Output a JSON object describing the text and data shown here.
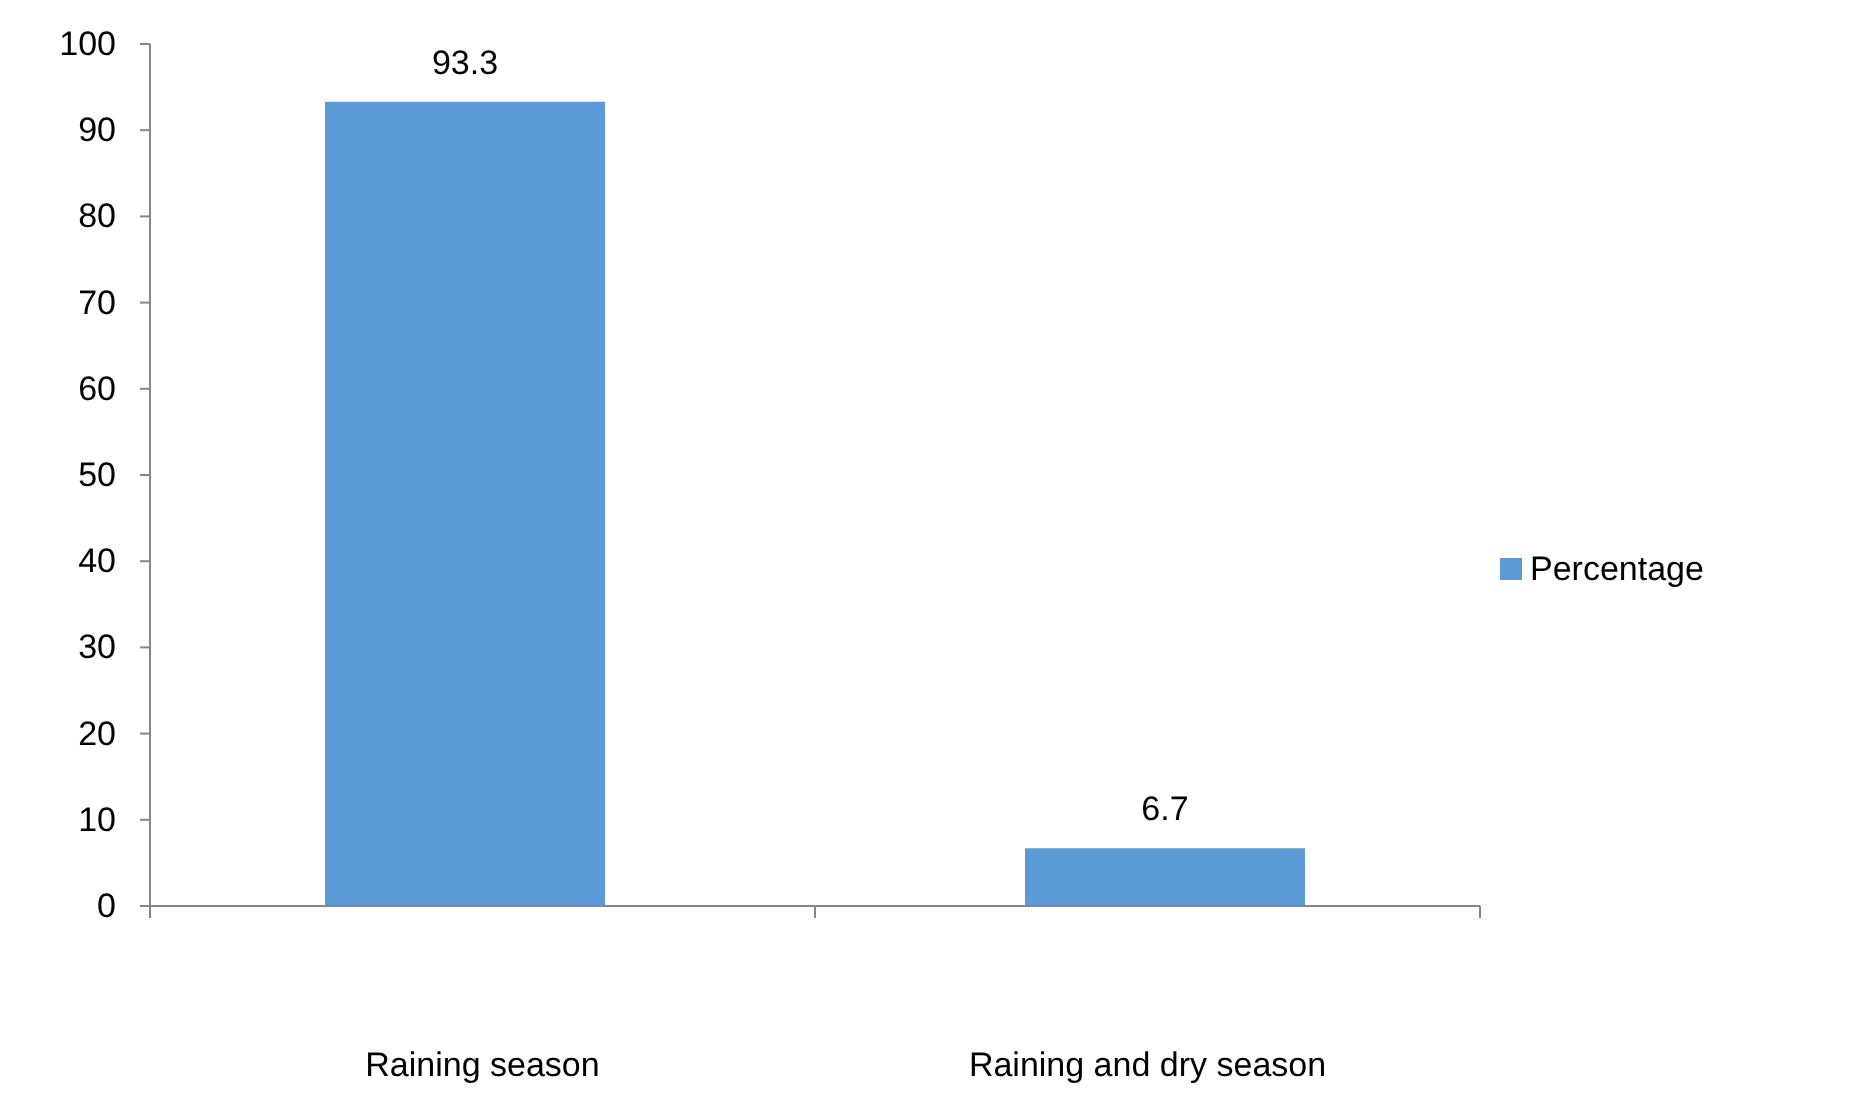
{
  "chart_data": {
    "type": "bar",
    "categories": [
      "Raining season",
      "Raining and dry season"
    ],
    "series": [
      {
        "name": "Percentage",
        "color": "#5b9bd5",
        "values": [
          93.3,
          6.7
        ]
      }
    ],
    "ylim": [
      0,
      100
    ],
    "yticks": [
      0,
      10,
      20,
      30,
      40,
      50,
      60,
      70,
      80,
      90,
      100
    ],
    "data_labels": true,
    "legend": "right",
    "grid": false
  }
}
